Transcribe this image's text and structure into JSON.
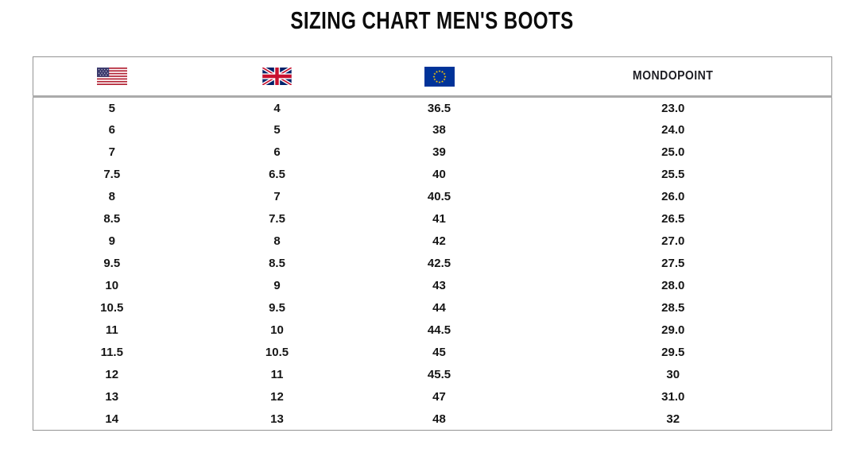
{
  "page": {
    "title": "SIZING CHART MEN'S BOOTS"
  },
  "chart_data": {
    "type": "table",
    "title": "SIZING CHART MEN'S BOOTS",
    "columns": [
      "US",
      "UK",
      "EU",
      "MONDOPOINT"
    ],
    "header_icons": [
      "us-flag-icon",
      "uk-flag-icon",
      "eu-flag-icon",
      "MONDOPOINT"
    ],
    "rows": [
      [
        "5",
        "4",
        "36.5",
        "23.0"
      ],
      [
        "6",
        "5",
        "38",
        "24.0"
      ],
      [
        "7",
        "6",
        "39",
        "25.0"
      ],
      [
        "7.5",
        "6.5",
        "40",
        "25.5"
      ],
      [
        "8",
        "7",
        "40.5",
        "26.0"
      ],
      [
        "8.5",
        "7.5",
        "41",
        "26.5"
      ],
      [
        "9",
        "8",
        "42",
        "27.0"
      ],
      [
        "9.5",
        "8.5",
        "42.5",
        "27.5"
      ],
      [
        "10",
        "9",
        "43",
        "28.0"
      ],
      [
        "10.5",
        "9.5",
        "44",
        "28.5"
      ],
      [
        "11",
        "10",
        "44.5",
        "29.0"
      ],
      [
        "11.5",
        "10.5",
        "45",
        "29.5"
      ],
      [
        "12",
        "11",
        "45.5",
        "30"
      ],
      [
        "13",
        "12",
        "47",
        "31.0"
      ],
      [
        "14",
        "13",
        "48",
        "32"
      ]
    ],
    "layout": {
      "grid": "outer border + header separator only, no inner row/column lines",
      "alignment": "all cells centered"
    }
  },
  "colors": {
    "background": "#ffffff",
    "text": "#141414",
    "border_outer": "#949494",
    "border_header_separator": "#ababab",
    "us_flag_red": "#B22234",
    "us_flag_blue": "#3C3B6E",
    "uk_flag_blue": "#012169",
    "uk_flag_red": "#C8102E",
    "eu_flag_blue": "#003399",
    "eu_flag_star": "#FFCC00"
  }
}
